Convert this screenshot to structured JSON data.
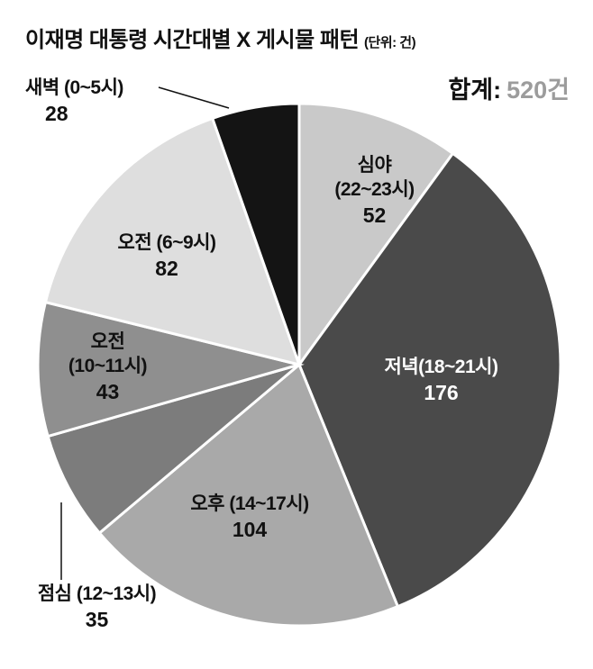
{
  "header": {
    "title": "이재명 대통령 시간대별 X 게시물 패턴",
    "unit": "(단위: 건)",
    "total_label": "합계:",
    "total_value": "520건"
  },
  "chart_data": {
    "type": "pie",
    "title": "이재명 대통령 시간대별 X 게시물 패턴",
    "unit": "건",
    "total": 520,
    "start_angle_deg": 0,
    "direction": "clockwise",
    "legend_position": "labels-on-slices",
    "slices": [
      {
        "id": "latenight",
        "label": "심야 (22~23시)",
        "value": 52,
        "color": "#c9c9c9"
      },
      {
        "id": "evening",
        "label": "저녁(18~21시)",
        "value": 176,
        "color": "#4a4a4a"
      },
      {
        "id": "afternoon",
        "label": "오후 (14~17시)",
        "value": 104,
        "color": "#a9a9a9"
      },
      {
        "id": "lunch",
        "label": "점심 (12~13시)",
        "value": 35,
        "color": "#7c7c7c"
      },
      {
        "id": "morning-10-11",
        "label": "오전 (10~11시)",
        "value": 43,
        "color": "#8f8f8f"
      },
      {
        "id": "morning-6-9",
        "label": "오전 (6~9시)",
        "value": 82,
        "color": "#dedede"
      },
      {
        "id": "dawn",
        "label": "새벽 (0~5시)",
        "value": 28,
        "color": "#141414"
      }
    ]
  },
  "callouts": {
    "dawn": {
      "label": "새벽 (0~5시)",
      "value": "28"
    },
    "latenight": {
      "line1": "심야",
      "line2": "(22~23시)",
      "value": "52"
    },
    "morning69": {
      "label": "오전 (6~9시)",
      "value": "82"
    },
    "morning1011": {
      "line1": "오전",
      "line2": "(10~11시)",
      "value": "43"
    },
    "evening": {
      "label": "저녁(18~21시)",
      "value": "176"
    },
    "afternoon": {
      "label": "오후 (14~17시)",
      "value": "104"
    },
    "lunch": {
      "label": "점심 (12~13시)",
      "value": "35"
    }
  },
  "colors": {
    "background": "#ffffff",
    "text": "#111111",
    "total_value": "#9c9c9c",
    "slice_divider": "#ffffff"
  }
}
